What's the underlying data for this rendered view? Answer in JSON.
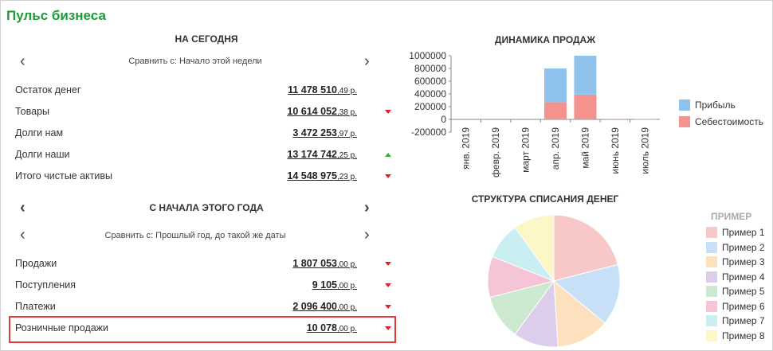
{
  "title": "Пульс бизнеса",
  "today": {
    "header": "НА СЕГОДНЯ",
    "compare": "Сравнить с: Начало этой недели",
    "rows": [
      {
        "label": "Остаток денег",
        "value": "11 478 510",
        "cents": ",49 р.",
        "trend": "none"
      },
      {
        "label": "Товары",
        "value": "10 614 052",
        "cents": ",38 р.",
        "trend": "down"
      },
      {
        "label": "Долги нам",
        "value": "3 472 253",
        "cents": ",97 р.",
        "trend": "none"
      },
      {
        "label": "Долги наши",
        "value": "13 174 742",
        "cents": ",25 р.",
        "trend": "up"
      },
      {
        "label": "Итого чистые активы",
        "value": "14 548 975",
        "cents": ",23 р.",
        "trend": "down"
      }
    ]
  },
  "year": {
    "header": "С НАЧАЛА ЭТОГО ГОДА",
    "compare": "Сравнить с: Прошлый год, до такой же даты",
    "rows": [
      {
        "label": "Продажи",
        "value": "1 807 053",
        "cents": ",00 р.",
        "trend": "down"
      },
      {
        "label": "Поступления",
        "value": "9 105",
        "cents": ",00 р.",
        "trend": "down"
      },
      {
        "label": "Платежи",
        "value": "2 096 400",
        "cents": ",00 р.",
        "trend": "down"
      },
      {
        "label": "Розничные продажи",
        "value": "10 078",
        "cents": ",00 р.",
        "trend": "down"
      }
    ]
  },
  "icons": {
    "prev": "chevron-left-icon",
    "next": "chevron-right-icon"
  },
  "colors": {
    "title": "#1f9a3c",
    "down": "#e0202b",
    "up": "#2db02d",
    "highlight": "#e03a3a"
  },
  "chart_data": [
    {
      "type": "bar",
      "title": "ДИНАМИКА ПРОДАЖ",
      "stacked": true,
      "categories": [
        "янв. 2019",
        "февр. 2019",
        "март 2019",
        "апр. 2019",
        "май 2019",
        "июнь 2019",
        "июль 2019"
      ],
      "series": [
        {
          "name": "Прибыль",
          "color": "#8fc3ee",
          "values": [
            0,
            0,
            0,
            530000,
            610000,
            5000,
            3000
          ]
        },
        {
          "name": "Себестоимость",
          "color": "#f4938e",
          "values": [
            0,
            0,
            0,
            270000,
            390000,
            3000,
            5000
          ]
        }
      ],
      "ylim": [
        -200000,
        1000000
      ],
      "yticks": [
        "1000000",
        "800000",
        "600000",
        "400000",
        "200000",
        "0",
        "-200000"
      ],
      "legend": "right"
    },
    {
      "type": "pie",
      "title": "СТРУКТУРА СПИСАНИЯ ДЕНЕГ",
      "legend_title": "ПРИМЕР",
      "labels": [
        "Пример 1",
        "Пример 2",
        "Пример 3",
        "Пример 4",
        "Пример 5",
        "Пример 6",
        "Пример 7",
        "Пример 8"
      ],
      "values": [
        21,
        15,
        13,
        11,
        11,
        10,
        9,
        10
      ],
      "colors": [
        "#f8c8c8",
        "#c8e0f7",
        "#fde0bd",
        "#dccdeb",
        "#cde9cf",
        "#f6c4d7",
        "#c9eff3",
        "#fdf6c6"
      ],
      "legend": "right"
    }
  ]
}
